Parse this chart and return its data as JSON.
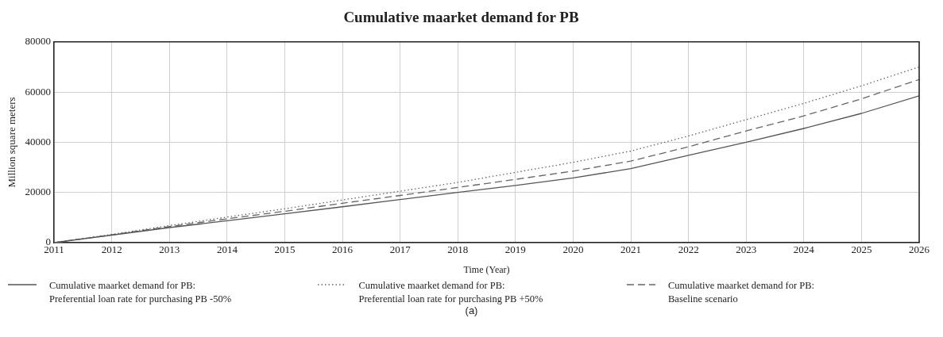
{
  "chart_data": {
    "type": "line",
    "title": "Cumulative maarket demand for PB",
    "xlabel": "Time (Year)",
    "ylabel": "Million square meters",
    "x": [
      2011,
      2012,
      2013,
      2014,
      2015,
      2016,
      2017,
      2018,
      2019,
      2020,
      2021,
      2022,
      2023,
      2024,
      2025,
      2026
    ],
    "xlim": [
      2011,
      2026
    ],
    "xticks": [
      2011,
      2012,
      2013,
      2014,
      2015,
      2016,
      2017,
      2018,
      2019,
      2020,
      2021,
      2022,
      2023,
      2024,
      2025,
      2026
    ],
    "ylim": [
      0,
      80000
    ],
    "yticks": [
      0,
      20000,
      40000,
      60000,
      80000
    ],
    "grid": true,
    "legend": "bottom",
    "marker": "none",
    "series": [
      {
        "name": "Cumulative maarket demand for PB:\nPreferential loan rate for purchasing PB -50%",
        "color": "#555555",
        "line_style": "solid",
        "values": [
          0,
          3000,
          6000,
          8700,
          11500,
          14300,
          17200,
          20000,
          22800,
          25800,
          29500,
          34800,
          40000,
          45500,
          51500,
          58500
        ]
      },
      {
        "name": "Cumulative maarket demand for PB:\nPreferential loan rate for purchasing PB +50%",
        "color": "#666666",
        "line_style": "dotted",
        "values": [
          0,
          3300,
          6800,
          10200,
          13500,
          17000,
          20500,
          24000,
          28000,
          32000,
          36500,
          42500,
          49000,
          55500,
          62500,
          70000
        ]
      },
      {
        "name": "Cumulative maarket demand for PB:\nBaseline scenario",
        "color": "#666666",
        "line_style": "dashed",
        "values": [
          0,
          3100,
          6400,
          9500,
          12500,
          15700,
          18800,
          22000,
          25200,
          28500,
          32500,
          38200,
          44500,
          50500,
          57300,
          65000
        ]
      }
    ],
    "annotations": [
      "(a)"
    ]
  }
}
